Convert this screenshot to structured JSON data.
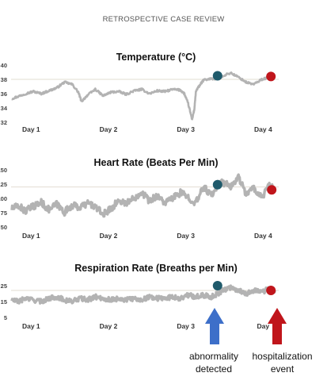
{
  "page": {
    "title": "RETROSPECTIVE CASE REVIEW"
  },
  "annotations": {
    "abnormality_line1": "abnormality",
    "abnormality_line2": "detected",
    "hospitalization_line1": "hospitalization",
    "hospitalization_line2": "event",
    "colors": {
      "abnormality": "#3d6fc9",
      "hospitalization": "#c0151b"
    }
  },
  "colors": {
    "series": "#b3b3b3",
    "abnormality_marker": "#1f5a6b",
    "hospitalization_marker": "#c0151b",
    "gridline": "#e2dcd2"
  },
  "chart_data": [
    {
      "type": "line",
      "title": "Temperature (°C)",
      "xlabel": "",
      "ylabel": "",
      "x_tick_labels": [
        "Day 1",
        "Day 2",
        "Day 3",
        "Day 4"
      ],
      "x_ticks": [
        1,
        2,
        3,
        4
      ],
      "xlim": [
        0.7,
        4.15
      ],
      "ylim": [
        32,
        40
      ],
      "y_ticks": [
        32,
        34,
        36,
        38,
        40
      ],
      "grid": "horizontal reference line at 38",
      "reference_line": 38,
      "series": [
        {
          "x": [
            0.72,
            0.8,
            0.9,
            1.0,
            1.1,
            1.2,
            1.3,
            1.4,
            1.5,
            1.58,
            1.62,
            1.7,
            1.8,
            1.9,
            2.0,
            2.1,
            2.2,
            2.3,
            2.4,
            2.5,
            2.6,
            2.7,
            2.8,
            2.9,
            2.95,
            3.0,
            3.05,
            3.08,
            3.1,
            3.15,
            3.2,
            3.3,
            3.38,
            3.45,
            3.55,
            3.65,
            3.75,
            3.85,
            3.95,
            4.05,
            4.12
          ],
          "y": [
            35.3,
            35.6,
            36.0,
            36.3,
            36.0,
            36.4,
            36.8,
            37.6,
            37.3,
            36.2,
            34.9,
            35.8,
            36.6,
            35.7,
            36.2,
            36.3,
            35.9,
            36.4,
            36.6,
            36.0,
            36.4,
            36.3,
            36.6,
            36.5,
            36.0,
            34.6,
            32.4,
            33.8,
            36.3,
            37.2,
            37.9,
            38.1,
            38.1,
            38.5,
            38.9,
            38.3,
            37.6,
            37.3,
            38.0,
            38.3,
            38.5
          ]
        }
      ],
      "abnormality_marker": {
        "x": 3.38,
        "y": 38.5
      },
      "hospitalization_marker": {
        "x": 4.07,
        "y": 38.4
      }
    },
    {
      "type": "line",
      "title": "Heart Rate (Beats Per Min)",
      "xlabel": "",
      "ylabel": "",
      "x_tick_labels": [
        "Day 1",
        "Day 2",
        "Day 3",
        "Day 4"
      ],
      "x_ticks": [
        1,
        2,
        3,
        4
      ],
      "xlim": [
        0.7,
        4.15
      ],
      "ylim": [
        50,
        150
      ],
      "y_ticks": [
        50,
        75,
        100,
        125,
        150
      ],
      "y_tick_labels": [
        "50",
        "75",
        "100",
        "125",
        "150"
      ],
      "grid": "horizontal reference line at 120",
      "reference_line": 120,
      "series": [
        {
          "x": [
            0.72,
            0.8,
            0.9,
            1.0,
            1.1,
            1.2,
            1.3,
            1.4,
            1.5,
            1.6,
            1.7,
            1.8,
            1.9,
            2.0,
            2.1,
            2.2,
            2.3,
            2.4,
            2.5,
            2.6,
            2.7,
            2.8,
            2.9,
            3.0,
            3.1,
            3.2,
            3.3,
            3.38,
            3.45,
            3.55,
            3.65,
            3.75,
            3.85,
            3.95,
            4.05,
            4.12
          ],
          "y": [
            82,
            87,
            78,
            86,
            93,
            80,
            90,
            76,
            88,
            84,
            92,
            85,
            72,
            82,
            96,
            92,
            100,
            112,
            95,
            105,
            92,
            100,
            110,
            102,
            92,
            120,
            105,
            124,
            128,
            120,
            138,
            108,
            118,
            102,
            122,
            115
          ]
        }
      ],
      "abnormality_marker": {
        "x": 3.38,
        "y": 124
      },
      "hospitalization_marker": {
        "x": 4.08,
        "y": 115
      }
    },
    {
      "type": "line",
      "title": "Respiration Rate (Breaths per Min)",
      "xlabel": "",
      "ylabel": "",
      "x_tick_labels": [
        "Day 1",
        "Day 2",
        "Day 3",
        "Day"
      ],
      "x_ticks": [
        1,
        2,
        3,
        4
      ],
      "xlim": [
        0.7,
        4.15
      ],
      "ylim": [
        5,
        30
      ],
      "y_ticks": [
        5,
        15,
        25
      ],
      "grid": "horizontal reference line at 22",
      "reference_line": 22,
      "series": [
        {
          "x": [
            0.72,
            0.8,
            0.9,
            1.0,
            1.1,
            1.2,
            1.3,
            1.4,
            1.5,
            1.6,
            1.7,
            1.8,
            1.9,
            2.0,
            2.1,
            2.2,
            2.3,
            2.4,
            2.5,
            2.6,
            2.7,
            2.8,
            2.9,
            3.0,
            3.1,
            3.2,
            3.3,
            3.38,
            3.45,
            3.55,
            3.65,
            3.75,
            3.85,
            3.95,
            4.05,
            4.12
          ],
          "y": [
            16,
            15,
            17,
            16,
            15,
            17,
            18,
            16,
            15,
            17,
            16,
            18,
            17,
            16,
            17,
            16,
            17,
            16,
            18,
            17,
            17,
            18,
            17,
            19,
            18,
            19,
            18,
            20,
            22,
            24,
            22,
            20,
            22,
            21,
            23,
            22
          ]
        }
      ],
      "abnormality_marker": {
        "x": 3.38,
        "y": 25
      },
      "hospitalization_marker": {
        "x": 4.07,
        "y": 22
      }
    }
  ]
}
